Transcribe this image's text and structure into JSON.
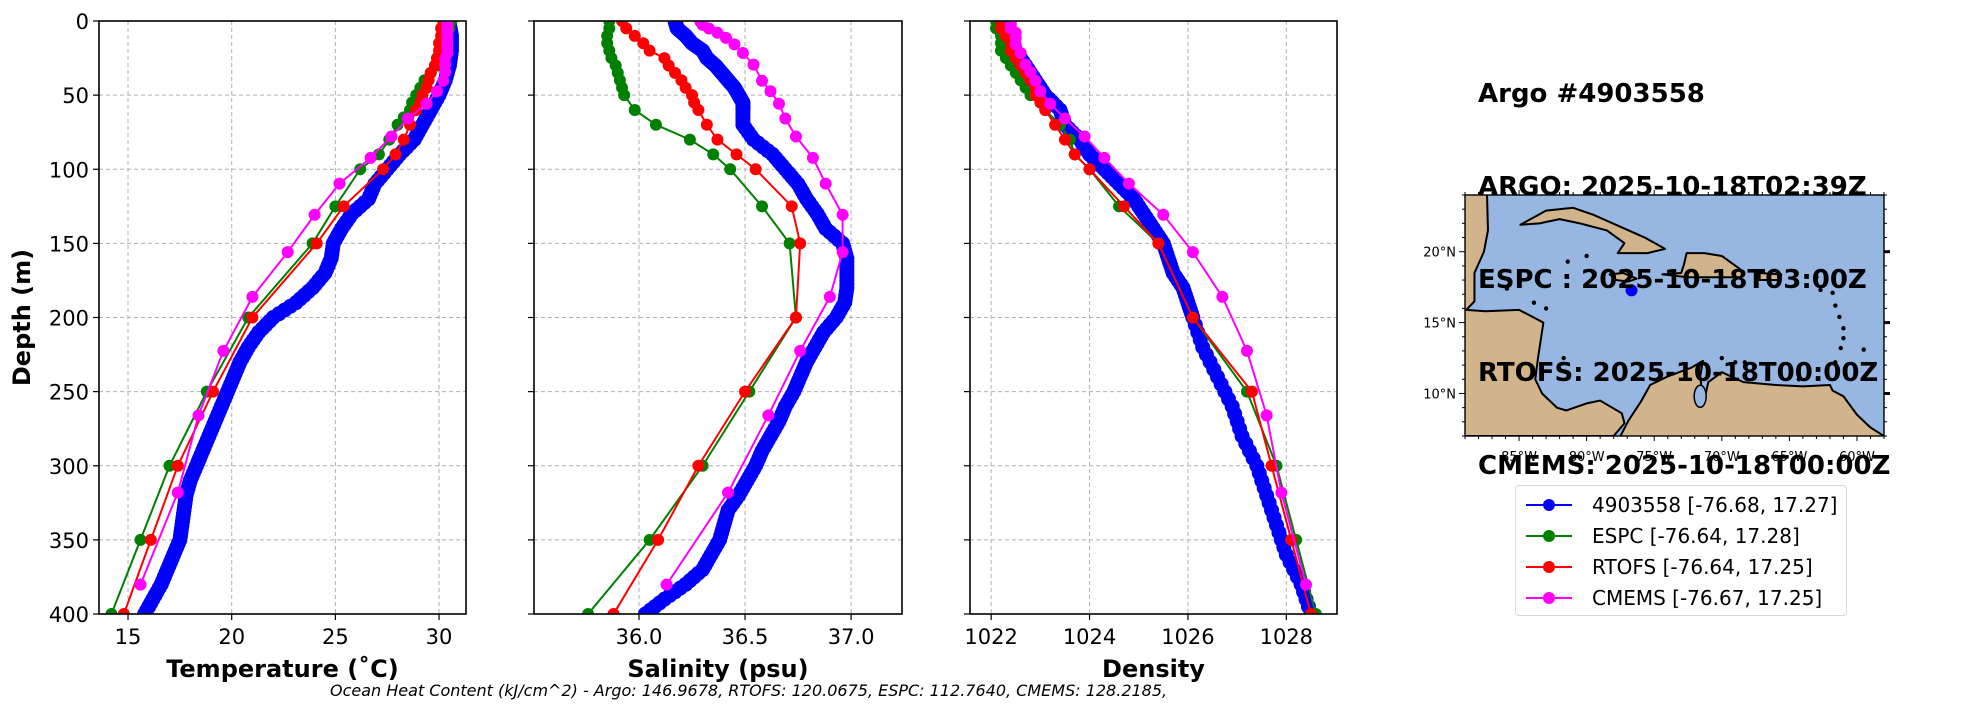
{
  "header": {
    "lines": [
      "Argo #4903558",
      "ARGO: 2025-10-18T02:39Z",
      "ESPC : 2025-10-18T03:00Z",
      "RTOFS: 2025-10-18T00:00Z",
      "CMEMS: 2025-10-18T00:00Z"
    ]
  },
  "footer": "Ocean Heat Content (kJ/cm^2) - Argo: 146.9678,  RTOFS: 120.0675,  ESPC: 112.7640,  CMEMS: 128.2185,",
  "colors": {
    "argo": "#0000ff",
    "espc": "#008000",
    "rtofs": "#ff0000",
    "cmems": "#ff00ff",
    "ocean": "#97b6e1",
    "land": "#d2b48c"
  },
  "legend": [
    {
      "label": "4903558 [-76.68, 17.27]",
      "color": "#0000ff"
    },
    {
      "label": "ESPC [-76.64, 17.28]",
      "color": "#008000"
    },
    {
      "label": "RTOFS [-76.64, 17.25]",
      "color": "#ff0000"
    },
    {
      "label": "CMEMS [-76.67, 17.25]",
      "color": "#ff00ff"
    }
  ],
  "chart_data": [
    {
      "type": "line",
      "title": "",
      "xlabel": "Temperature (˚C)",
      "ylabel": "Depth (m)",
      "xlim": [
        13.6,
        31.3
      ],
      "ylim": [
        400,
        0
      ],
      "xticks": [
        15,
        20,
        25,
        30
      ],
      "yticks": [
        0,
        50,
        100,
        150,
        200,
        250,
        300,
        350,
        400
      ],
      "grid": true,
      "series": [
        {
          "name": "4903558",
          "color": "#0000ff",
          "depth": [
            2,
            10,
            20,
            30,
            40,
            50,
            60,
            70,
            80,
            90,
            100,
            110,
            120,
            130,
            140,
            150,
            160,
            170,
            180,
            190,
            200,
            210,
            220,
            230,
            240,
            250,
            260,
            270,
            280,
            290,
            300,
            310,
            320,
            330,
            340,
            350,
            360,
            370,
            380,
            390,
            400
          ],
          "values": [
            30.5,
            30.6,
            30.6,
            30.5,
            30.3,
            30.0,
            29.6,
            29.2,
            28.8,
            28.1,
            27.5,
            26.9,
            26.6,
            25.8,
            25.3,
            24.9,
            24.8,
            24.5,
            23.9,
            23.1,
            22.0,
            21.3,
            20.8,
            20.4,
            20.1,
            19.8,
            19.5,
            19.2,
            18.9,
            18.6,
            18.3,
            18.0,
            17.8,
            17.7,
            17.6,
            17.5,
            17.2,
            16.9,
            16.6,
            16.2,
            15.8
          ]
        },
        {
          "name": "ESPC",
          "color": "#008000",
          "depth": [
            0,
            5,
            10,
            15,
            20,
            25,
            30,
            35,
            40,
            45,
            50,
            55,
            60,
            65,
            70,
            80,
            90,
            100,
            125,
            150,
            200,
            250,
            300,
            350,
            400
          ],
          "values": [
            30.6,
            30.5,
            30.4,
            30.3,
            30.2,
            30.1,
            29.9,
            29.6,
            29.3,
            29.1,
            28.9,
            28.7,
            28.6,
            28.3,
            28.0,
            27.6,
            27.1,
            26.2,
            25.0,
            23.9,
            20.8,
            18.8,
            17.0,
            15.6,
            14.2
          ]
        },
        {
          "name": "RTOFS",
          "color": "#ff0000",
          "depth": [
            0,
            5,
            10,
            15,
            20,
            25,
            30,
            35,
            40,
            45,
            50,
            55,
            60,
            70,
            80,
            90,
            100,
            125,
            150,
            200,
            250,
            300,
            350,
            400
          ],
          "values": [
            30.2,
            30.1,
            30.1,
            30.0,
            30.0,
            29.9,
            29.8,
            29.6,
            29.5,
            29.4,
            29.2,
            29.1,
            28.9,
            28.6,
            28.3,
            27.9,
            27.3,
            25.4,
            24.1,
            21.0,
            19.1,
            17.4,
            16.1,
            14.8
          ]
        },
        {
          "name": "CMEMS",
          "color": "#ff00ff",
          "depth": [
            0.5,
            1.5,
            2.6,
            3.8,
            5.1,
            6.4,
            7.9,
            9.6,
            11.4,
            13.5,
            15.8,
            18.5,
            21.6,
            25.2,
            29.4,
            34.4,
            40.3,
            47.4,
            55.8,
            65.8,
            77.9,
            92.3,
            109.7,
            130.7,
            155.9,
            186.1,
            222.5,
            266.0,
            318.1,
            380.2
          ],
          "values": [
            30.4,
            30.4,
            30.4,
            30.4,
            30.4,
            30.4,
            30.4,
            30.4,
            30.4,
            30.4,
            30.4,
            30.4,
            30.4,
            30.3,
            30.3,
            30.3,
            30.2,
            29.9,
            29.4,
            28.5,
            27.7,
            26.7,
            25.2,
            24.0,
            22.7,
            21.0,
            19.6,
            18.4,
            17.4,
            15.6
          ]
        }
      ]
    },
    {
      "type": "line",
      "title": "",
      "xlabel": "Salinity (psu)",
      "ylabel": "",
      "xlim": [
        35.505,
        37.24
      ],
      "ylim": [
        400,
        0
      ],
      "xticks": [
        36.0,
        36.5,
        37.0
      ],
      "yticks": [
        0,
        50,
        100,
        150,
        200,
        250,
        300,
        350,
        400
      ],
      "grid": true,
      "series": [
        {
          "name": "4903558",
          "color": "#0000ff",
          "depth": [
            0,
            5,
            10,
            15,
            20,
            25,
            30,
            35,
            40,
            45,
            50,
            55,
            60,
            70,
            80,
            90,
            100,
            110,
            120,
            130,
            140,
            150,
            160,
            170,
            180,
            190,
            200,
            210,
            220,
            230,
            240,
            250,
            260,
            270,
            280,
            290,
            300,
            310,
            320,
            330,
            340,
            350,
            360,
            370,
            380,
            390,
            400
          ],
          "values": [
            36.17,
            36.18,
            36.22,
            36.25,
            36.3,
            36.32,
            36.36,
            36.39,
            36.42,
            36.45,
            36.47,
            36.49,
            36.49,
            36.49,
            36.54,
            36.63,
            36.69,
            36.75,
            36.79,
            36.84,
            36.88,
            36.96,
            36.98,
            36.98,
            36.98,
            36.97,
            36.93,
            36.87,
            36.83,
            36.79,
            36.76,
            36.73,
            36.69,
            36.66,
            36.62,
            36.58,
            36.55,
            36.51,
            36.47,
            36.42,
            36.4,
            36.38,
            36.34,
            36.3,
            36.22,
            36.12,
            36.03
          ]
        },
        {
          "name": "ESPC",
          "color": "#008000",
          "depth": [
            0,
            5,
            10,
            15,
            20,
            25,
            30,
            35,
            40,
            45,
            50,
            60,
            70,
            80,
            90,
            100,
            125,
            150,
            200,
            250,
            300,
            350,
            400
          ],
          "values": [
            35.86,
            35.86,
            35.85,
            35.85,
            35.86,
            35.87,
            35.89,
            35.9,
            35.91,
            35.92,
            35.93,
            35.98,
            36.08,
            36.24,
            36.35,
            36.43,
            36.58,
            36.71,
            36.74,
            36.52,
            36.3,
            36.05,
            35.76
          ]
        },
        {
          "name": "RTOFS",
          "color": "#ff0000",
          "depth": [
            0,
            5,
            10,
            15,
            20,
            25,
            30,
            35,
            40,
            45,
            50,
            55,
            60,
            70,
            80,
            90,
            100,
            125,
            150,
            200,
            250,
            300,
            350,
            400
          ],
          "values": [
            35.92,
            35.94,
            35.98,
            36.02,
            36.05,
            36.12,
            36.14,
            36.17,
            36.2,
            36.22,
            36.25,
            36.26,
            36.28,
            36.32,
            36.37,
            36.46,
            36.55,
            36.72,
            36.76,
            36.74,
            36.5,
            36.28,
            36.09,
            35.88
          ]
        },
        {
          "name": "CMEMS",
          "color": "#ff00ff",
          "depth": [
            0.5,
            2.6,
            5.1,
            7.9,
            11.4,
            15.8,
            21.6,
            29.4,
            40.3,
            47.4,
            55.8,
            65.8,
            77.9,
            92.3,
            109.7,
            130.7,
            155.9,
            186.1,
            222.5,
            266.0,
            318.1,
            380.2
          ],
          "values": [
            36.29,
            36.3,
            36.33,
            36.37,
            36.41,
            36.45,
            36.49,
            36.54,
            36.58,
            36.62,
            36.66,
            36.69,
            36.74,
            36.82,
            36.88,
            36.96,
            36.96,
            36.9,
            36.76,
            36.61,
            36.42,
            36.13
          ]
        }
      ]
    },
    {
      "type": "line",
      "title": "",
      "xlabel": "Density",
      "ylabel": "",
      "xlim": [
        1021.57,
        1029.03
      ],
      "ylim": [
        400,
        0
      ],
      "xticks": [
        1022,
        1024,
        1026,
        1028
      ],
      "yticks": [
        0,
        50,
        100,
        150,
        200,
        250,
        300,
        350,
        400
      ],
      "grid": true,
      "series": [
        {
          "name": "4903558",
          "color": "#0000ff",
          "depth": [
            0,
            10,
            20,
            30,
            40,
            50,
            60,
            70,
            80,
            90,
            100,
            110,
            120,
            130,
            140,
            150,
            160,
            170,
            180,
            190,
            200,
            220,
            240,
            260,
            280,
            300,
            320,
            340,
            360,
            380,
            400
          ],
          "values": [
            1022.2,
            1022.3,
            1022.5,
            1022.7,
            1022.9,
            1023.1,
            1023.4,
            1023.5,
            1023.8,
            1024.0,
            1024.3,
            1024.6,
            1024.9,
            1025.1,
            1025.3,
            1025.5,
            1025.6,
            1025.7,
            1025.9,
            1026.0,
            1026.1,
            1026.3,
            1026.6,
            1026.9,
            1027.1,
            1027.4,
            1027.6,
            1027.8,
            1028.0,
            1028.3,
            1028.5
          ]
        },
        {
          "name": "ESPC",
          "color": "#008000",
          "depth": [
            0,
            5,
            10,
            15,
            20,
            25,
            30,
            35,
            40,
            45,
            50,
            60,
            70,
            80,
            90,
            100,
            125,
            150,
            200,
            250,
            300,
            350,
            400
          ],
          "values": [
            1022.1,
            1022.1,
            1022.2,
            1022.2,
            1022.2,
            1022.3,
            1022.4,
            1022.5,
            1022.6,
            1022.7,
            1022.8,
            1023.1,
            1023.4,
            1023.6,
            1023.7,
            1024.0,
            1024.6,
            1025.4,
            1026.1,
            1027.2,
            1027.8,
            1028.2,
            1028.6
          ]
        },
        {
          "name": "RTOFS",
          "color": "#ff0000",
          "depth": [
            0,
            5,
            10,
            15,
            20,
            25,
            30,
            35,
            40,
            45,
            50,
            55,
            60,
            70,
            80,
            90,
            100,
            125,
            150,
            200,
            250,
            300,
            350,
            400
          ],
          "values": [
            1022.2,
            1022.2,
            1022.3,
            1022.4,
            1022.4,
            1022.5,
            1022.6,
            1022.7,
            1022.8,
            1022.9,
            1022.9,
            1023.0,
            1023.1,
            1023.3,
            1023.5,
            1023.7,
            1024.0,
            1024.7,
            1025.4,
            1026.1,
            1027.3,
            1027.7,
            1028.1,
            1028.5
          ]
        },
        {
          "name": "CMEMS",
          "color": "#ff00ff",
          "depth": [
            0.5,
            2.6,
            5.1,
            7.9,
            11.4,
            15.8,
            21.6,
            29.4,
            34.4,
            40.3,
            47.4,
            55.8,
            65.8,
            77.9,
            92.3,
            109.7,
            130.7,
            155.9,
            186.1,
            222.5,
            266.0,
            318.1,
            380.2
          ],
          "values": [
            1022.4,
            1022.4,
            1022.4,
            1022.5,
            1022.5,
            1022.5,
            1022.6,
            1022.7,
            1022.8,
            1022.9,
            1023.0,
            1023.2,
            1023.5,
            1023.9,
            1024.3,
            1024.8,
            1025.5,
            1026.1,
            1026.7,
            1027.2,
            1027.6,
            1027.9,
            1028.4
          ]
        }
      ]
    }
  ],
  "map": {
    "extent_lon": [
      -89,
      -58
    ],
    "extent_lat": [
      7,
      24
    ],
    "lon_ticks": [
      "85°W",
      "80°W",
      "75°W",
      "70°W",
      "65°W",
      "60°W"
    ],
    "lat_ticks": [
      "20°N",
      "15°N",
      "10°N"
    ],
    "marker": {
      "lon": -76.68,
      "lat": 17.27,
      "color": "#0000ff"
    }
  }
}
